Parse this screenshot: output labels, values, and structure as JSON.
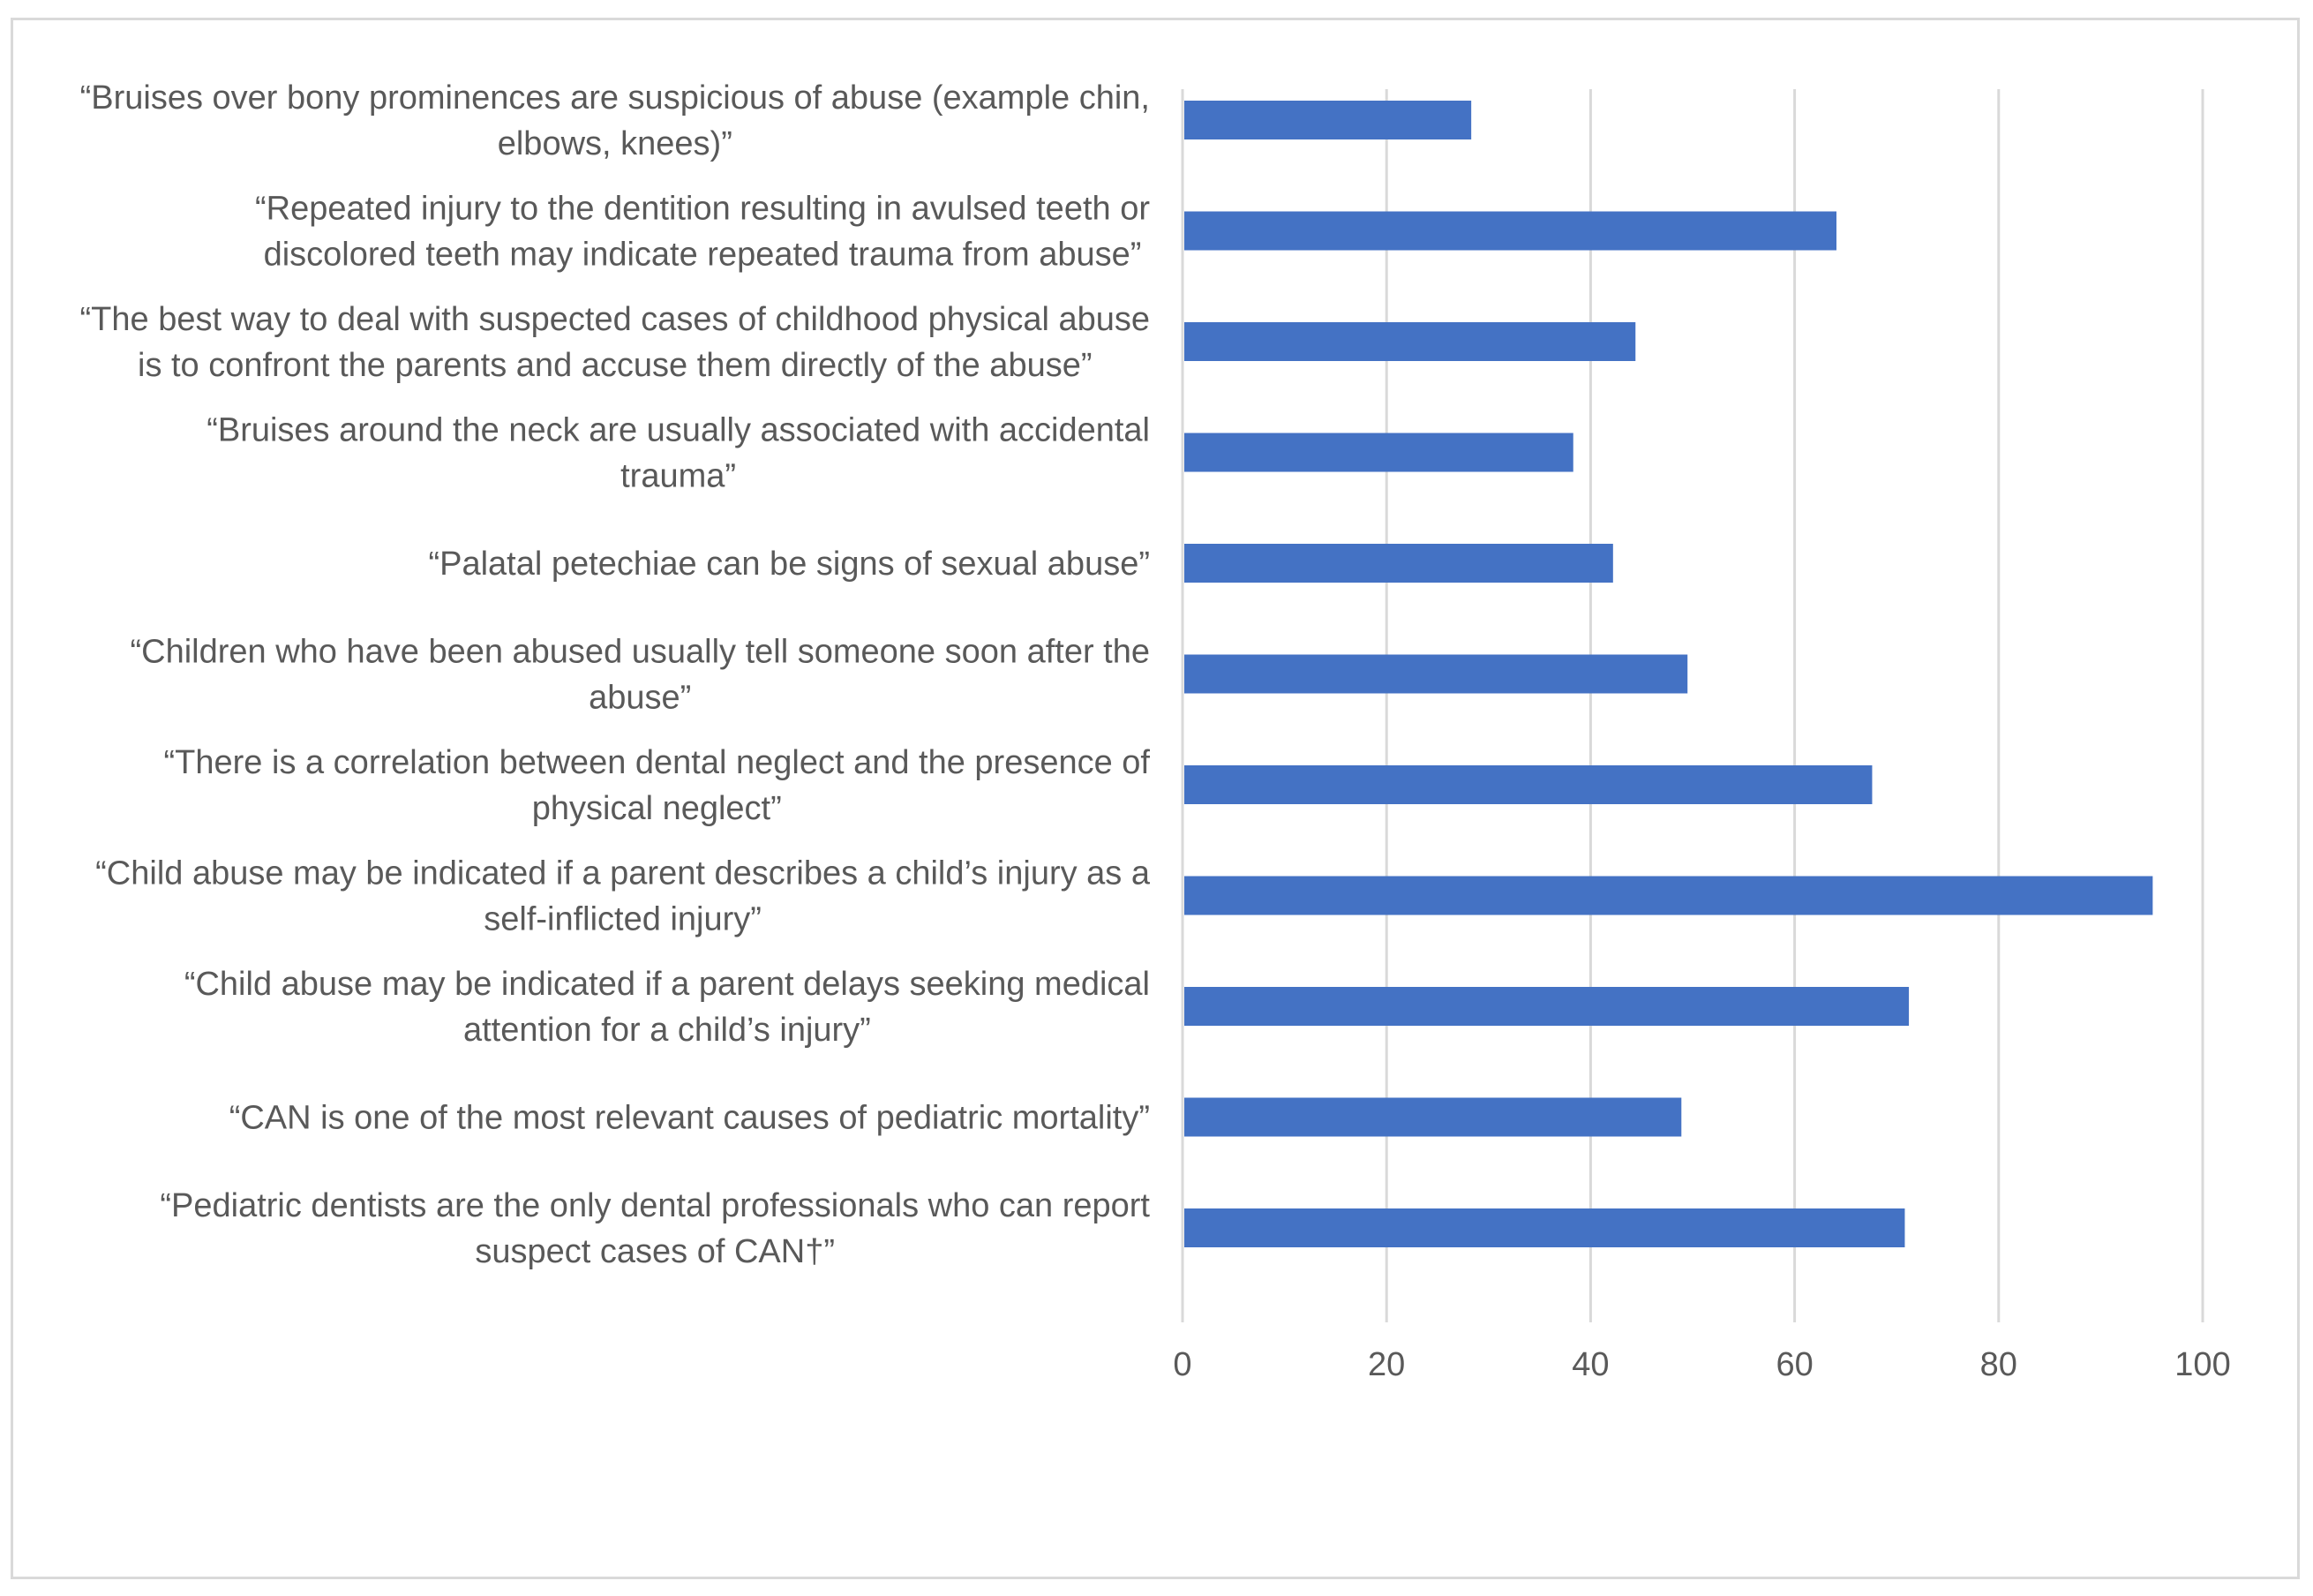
{
  "chart_data": {
    "type": "bar",
    "orientation": "horizontal",
    "title": "",
    "xlabel": "",
    "ylabel": "",
    "xlim": [
      0,
      100
    ],
    "xticks": [
      "0",
      "20",
      "40",
      "60",
      "80",
      "100"
    ],
    "grid": true,
    "bar_color": "#4472C4",
    "grid_color": "#d9d9d9",
    "label_color": "#595959",
    "categories": [
      [
        "“Bruises over bony prominences are suspicious of abuse (example chin,",
        "elbows, knees)”"
      ],
      [
        "“Repeated injury to the dentition resulting in avulsed teeth or",
        "discolored teeth may indicate repeated trauma from abuse”"
      ],
      [
        "“The best way to deal with suspected cases of childhood physical abuse",
        "is to confront the parents and accuse them directly of the abuse”"
      ],
      [
        "“Bruises around the neck are usually associated with accidental",
        "trauma”"
      ],
      [
        "“Palatal petechiae can be signs of sexual abuse”"
      ],
      [
        "“Children who have been abused usually tell someone soon after the",
        "abuse”"
      ],
      [
        "“There is a correlation between dental neglect and the presence of",
        "physical neglect”"
      ],
      [
        "“Child abuse may be indicated if a parent describes a child’s injury as a",
        "self-inflicted injury”"
      ],
      [
        "“Child abuse may be indicated if a parent delays seeking medical",
        "attention for a child’s injury”"
      ],
      [
        "“CAN is one of the most relevant causes of pediatric mortality”"
      ],
      [
        "“Pediatric dentists are the only dental professionals who can report",
        "suspect cases of CAN†”"
      ]
    ],
    "values": [
      28.3,
      64.1,
      44.4,
      38.3,
      42.2,
      49.5,
      67.6,
      95.1,
      71.2,
      48.9,
      70.8
    ]
  }
}
